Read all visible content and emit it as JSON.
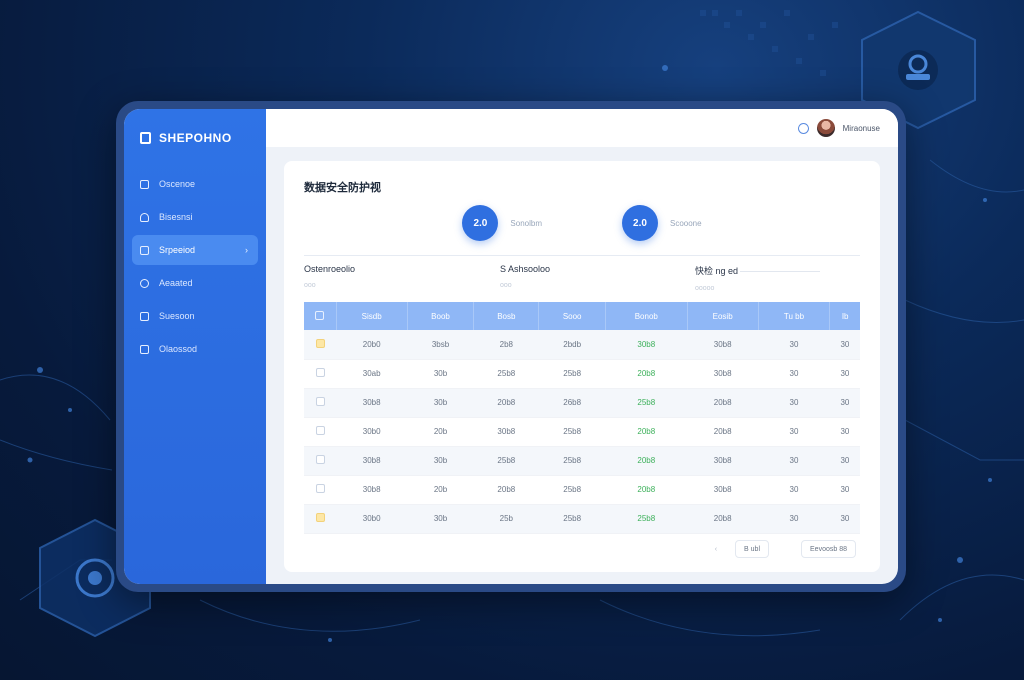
{
  "brand": {
    "title": "SHEPOHNO"
  },
  "sidebar": {
    "items": [
      {
        "label": "Oscenoe",
        "icon": "document-icon",
        "active": false
      },
      {
        "label": "Bisesnsi",
        "icon": "headset-icon",
        "active": false
      },
      {
        "label": "Srpeeiod",
        "icon": "monitor-icon",
        "active": true
      },
      {
        "label": "Aeaated",
        "icon": "refresh-icon",
        "active": false
      },
      {
        "label": "Suesoon",
        "icon": "chart-icon",
        "active": false
      },
      {
        "label": "Olaossod",
        "icon": "file-icon",
        "active": false
      }
    ]
  },
  "topbar": {
    "user_name": "Miraonuse"
  },
  "main": {
    "title": "数据安全防护视",
    "stats": [
      {
        "value": "2.0",
        "label": "Sonolbm"
      },
      {
        "value": "2.0",
        "label": "Scooone"
      }
    ],
    "filters": [
      {
        "label": "Ostenroeolio",
        "sub": "ooo"
      },
      {
        "label": "S Ashsooloo",
        "sub": "ooo"
      },
      {
        "label": "快检 ng ed",
        "sub": "ooooo"
      }
    ],
    "table": {
      "headers": [
        "Sisdb",
        "Boob",
        "Bosb",
        "Sooo",
        "Bonob",
        "Eosib",
        "Tu bb",
        "Ib"
      ],
      "rows": [
        [
          "20b0",
          "3bsb",
          "2b8",
          "2bdb",
          "30b8",
          "30b8",
          "30",
          "30"
        ],
        [
          "30ab",
          "30b",
          "25b8",
          "25b8",
          "20b8",
          "30b8",
          "30",
          "30"
        ],
        [
          "30b8",
          "30b",
          "20b8",
          "26b8",
          "25b8",
          "20b8",
          "30",
          "30"
        ],
        [
          "30b0",
          "20b",
          "30b8",
          "25b8",
          "20b8",
          "20b8",
          "30",
          "30"
        ],
        [
          "30b8",
          "30b",
          "25b8",
          "25b8",
          "20b8",
          "30b8",
          "30",
          "30"
        ],
        [
          "30b8",
          "20b",
          "20b8",
          "25b8",
          "20b8",
          "30b8",
          "30",
          "30"
        ],
        [
          "30b0",
          "30b",
          "25b",
          "25b8",
          "25b8",
          "20b8",
          "30",
          "30"
        ]
      ],
      "checkbox_colors": [
        "yellow",
        "white",
        "white",
        "white",
        "white",
        "white",
        "yellow"
      ],
      "green_column_index": 4
    },
    "pager": {
      "page_label": "B ubl",
      "export_label": "Eevoosb 88"
    }
  }
}
